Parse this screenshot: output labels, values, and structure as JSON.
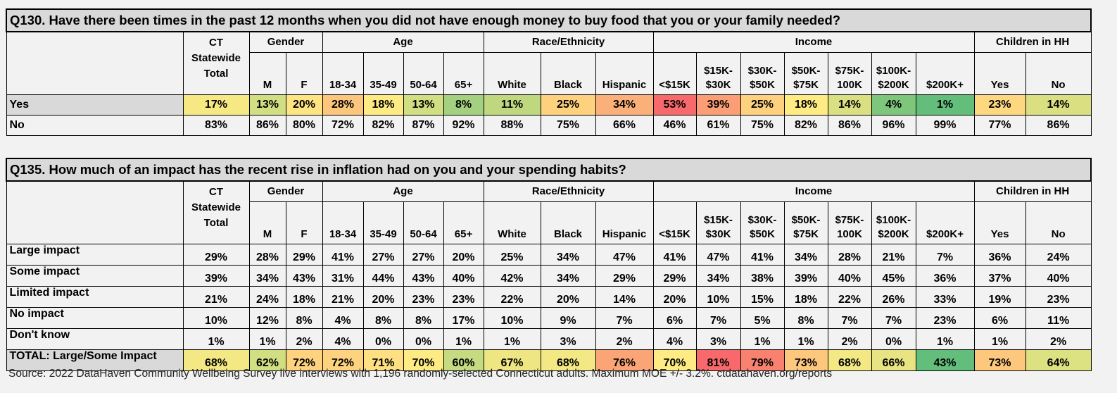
{
  "scale_colors": {
    "low": "#63BE7B",
    "mid": "#FFEB84",
    "high": "#F8696B"
  },
  "groups": [
    {
      "label": "Gender",
      "span": 2
    },
    {
      "label": "Age",
      "span": 4
    },
    {
      "label": "Race/Ethnicity",
      "span": 3
    },
    {
      "label": "Income",
      "span": 7
    },
    {
      "label": "Children in HH",
      "span": 2
    }
  ],
  "ct_header": [
    "CT",
    "Statewide",
    "Total"
  ],
  "columns": [
    "M",
    "F",
    "18-34",
    "35-49",
    "50-64",
    "65+",
    "White",
    "Black",
    "Hispanic",
    "<$15K",
    "$15K-\n$30K",
    "$30K-\n$50K",
    "$50K-\n$75K",
    "$75K-\n100K",
    "$100K-\n$200K",
    "$200K+",
    "Yes",
    "No"
  ],
  "tables": [
    {
      "title": "Q130. Have there been times in the past 12 months when you did not have enough money to buy food that you or your family needed?",
      "rows": [
        {
          "label": "Yes",
          "highlight": true,
          "values": [
            "17%",
            "13%",
            "20%",
            "28%",
            "18%",
            "13%",
            "8%",
            "11%",
            "25%",
            "34%",
            "53%",
            "39%",
            "25%",
            "18%",
            "14%",
            "4%",
            "1%",
            "23%",
            "14%"
          ]
        },
        {
          "label": "No",
          "highlight": false,
          "values": [
            "83%",
            "86%",
            "80%",
            "72%",
            "82%",
            "87%",
            "92%",
            "88%",
            "75%",
            "66%",
            "46%",
            "61%",
            "75%",
            "82%",
            "86%",
            "96%",
            "99%",
            "77%",
            "86%"
          ]
        }
      ]
    },
    {
      "title": "Q135. How much of an impact has the recent rise in inflation had on you and your spending habits?",
      "rows": [
        {
          "label": "Large impact",
          "highlight": false,
          "values": [
            "29%",
            "28%",
            "29%",
            "41%",
            "27%",
            "27%",
            "20%",
            "25%",
            "34%",
            "47%",
            "41%",
            "47%",
            "41%",
            "34%",
            "28%",
            "21%",
            "7%",
            "36%",
            "24%"
          ]
        },
        {
          "label": "Some impact",
          "highlight": false,
          "values": [
            "39%",
            "34%",
            "43%",
            "31%",
            "44%",
            "43%",
            "40%",
            "42%",
            "34%",
            "29%",
            "29%",
            "34%",
            "38%",
            "39%",
            "40%",
            "45%",
            "36%",
            "37%",
            "40%"
          ]
        },
        {
          "label": "Limited impact",
          "highlight": false,
          "values": [
            "21%",
            "24%",
            "18%",
            "21%",
            "20%",
            "23%",
            "23%",
            "22%",
            "20%",
            "14%",
            "20%",
            "10%",
            "15%",
            "18%",
            "22%",
            "26%",
            "33%",
            "19%",
            "23%"
          ]
        },
        {
          "label": "No impact",
          "highlight": false,
          "values": [
            "10%",
            "12%",
            "8%",
            "4%",
            "8%",
            "8%",
            "17%",
            "10%",
            "9%",
            "7%",
            "6%",
            "7%",
            "5%",
            "8%",
            "7%",
            "7%",
            "23%",
            "6%",
            "11%"
          ]
        },
        {
          "label": "Don't know",
          "highlight": false,
          "values": [
            "1%",
            "1%",
            "2%",
            "4%",
            "0%",
            "0%",
            "1%",
            "1%",
            "3%",
            "2%",
            "4%",
            "3%",
            "1%",
            "1%",
            "2%",
            "0%",
            "1%",
            "1%",
            "2%"
          ]
        },
        {
          "label": "TOTAL: Large/Some Impact",
          "highlight": true,
          "values": [
            "68%",
            "62%",
            "72%",
            "72%",
            "71%",
            "70%",
            "60%",
            "67%",
            "68%",
            "76%",
            "70%",
            "81%",
            "79%",
            "73%",
            "68%",
            "66%",
            "43%",
            "73%",
            "64%"
          ]
        }
      ]
    }
  ],
  "source": "Source: 2022 DataHaven Community Wellbeing Survey live interviews with 1,196 randomly-selected Connecticut adults. Maximum MOE +/- 3.2%. ctdatahaven.org/reports"
}
